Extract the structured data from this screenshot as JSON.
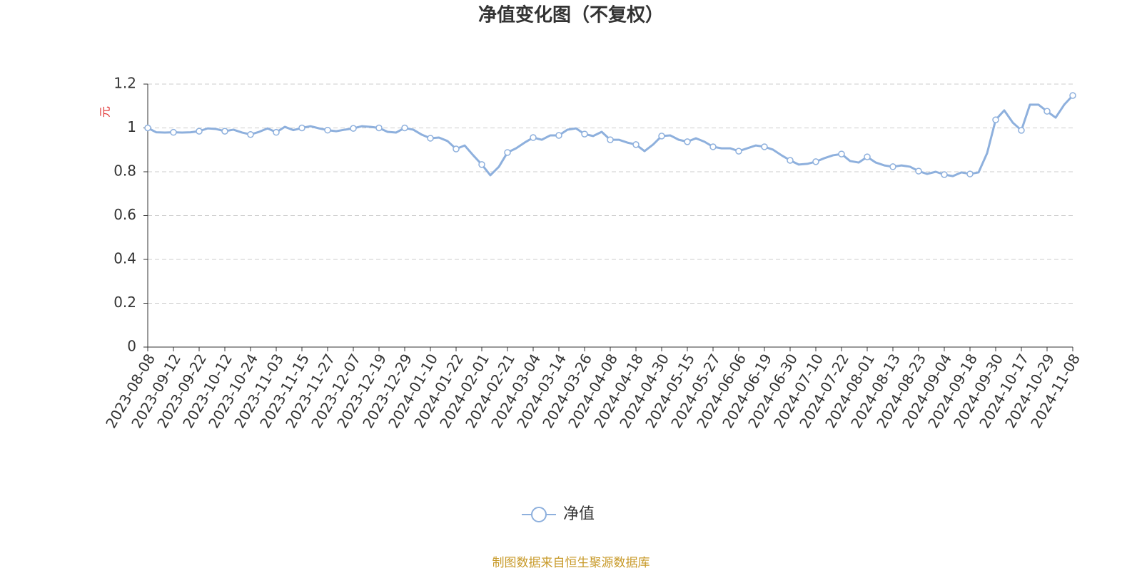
{
  "chart_data": {
    "type": "line",
    "title": "净值变化图（不复权）",
    "y_label": "元",
    "source": "制图数据来自恒生聚源数据库",
    "categories": [
      "2023-08-08",
      null,
      null,
      "2023-09-12",
      null,
      null,
      "2023-09-22",
      null,
      null,
      "2023-10-12",
      null,
      null,
      "2023-10-24",
      null,
      null,
      "2023-11-03",
      null,
      null,
      "2023-11-15",
      null,
      null,
      "2023-11-27",
      null,
      null,
      "2023-12-07",
      null,
      null,
      "2023-12-19",
      null,
      null,
      "2023-12-29",
      null,
      null,
      "2024-01-10",
      null,
      null,
      "2024-01-22",
      null,
      null,
      "2024-02-01",
      null,
      null,
      "2024-02-21",
      null,
      null,
      "2024-03-04",
      null,
      null,
      "2024-03-14",
      null,
      null,
      "2024-03-26",
      null,
      null,
      "2024-04-08",
      null,
      null,
      "2024-04-18",
      null,
      null,
      "2024-04-30",
      null,
      null,
      "2024-05-15",
      null,
      null,
      "2024-05-27",
      null,
      null,
      "2024-06-06",
      null,
      null,
      "2024-06-19",
      null,
      null,
      "2024-06-30",
      null,
      null,
      "2024-07-10",
      null,
      null,
      "2024-07-22",
      null,
      null,
      "2024-08-01",
      null,
      null,
      "2024-08-13",
      null,
      null,
      "2024-08-23",
      null,
      null,
      "2024-09-04",
      null,
      null,
      "2024-09-18",
      null,
      null,
      "2024-09-30",
      null,
      null,
      "2024-10-17",
      null,
      null,
      "2024-10-29",
      null,
      null,
      "2024-11-08"
    ],
    "series": [
      {
        "name": "净值",
        "color": "#8eb0dd",
        "values": [
          1.0,
          0.98,
          0.979,
          0.98,
          0.979,
          0.98,
          0.985,
          0.998,
          0.995,
          0.985,
          0.992,
          0.979,
          0.97,
          0.982,
          0.998,
          0.98,
          1.005,
          0.99,
          1.0,
          1.008,
          0.998,
          0.99,
          0.985,
          0.992,
          0.998,
          1.008,
          1.005,
          1.0,
          0.982,
          0.979,
          1.0,
          0.992,
          0.969,
          0.953,
          0.956,
          0.94,
          0.904,
          0.92,
          0.875,
          0.833,
          0.784,
          0.823,
          0.888,
          0.907,
          0.933,
          0.956,
          0.946,
          0.966,
          0.966,
          0.992,
          0.998,
          0.972,
          0.963,
          0.982,
          0.946,
          0.946,
          0.933,
          0.924,
          0.894,
          0.924,
          0.963,
          0.966,
          0.946,
          0.937,
          0.953,
          0.937,
          0.914,
          0.907,
          0.907,
          0.894,
          0.907,
          0.92,
          0.914,
          0.901,
          0.875,
          0.852,
          0.833,
          0.836,
          0.846,
          0.862,
          0.875,
          0.881,
          0.849,
          0.842,
          0.868,
          0.842,
          0.829,
          0.823,
          0.829,
          0.823,
          0.803,
          0.79,
          0.8,
          0.787,
          0.78,
          0.797,
          0.79,
          0.797,
          0.885,
          1.037,
          1.08,
          1.024,
          0.989,
          1.106,
          1.106,
          1.076,
          1.047,
          1.106,
          1.148
        ]
      }
    ],
    "ylim": [
      0,
      1.2
    ],
    "yticks": [
      0,
      0.2,
      0.4,
      0.6,
      0.8,
      1,
      1.2
    ],
    "grid": true,
    "legend": "bottom"
  }
}
